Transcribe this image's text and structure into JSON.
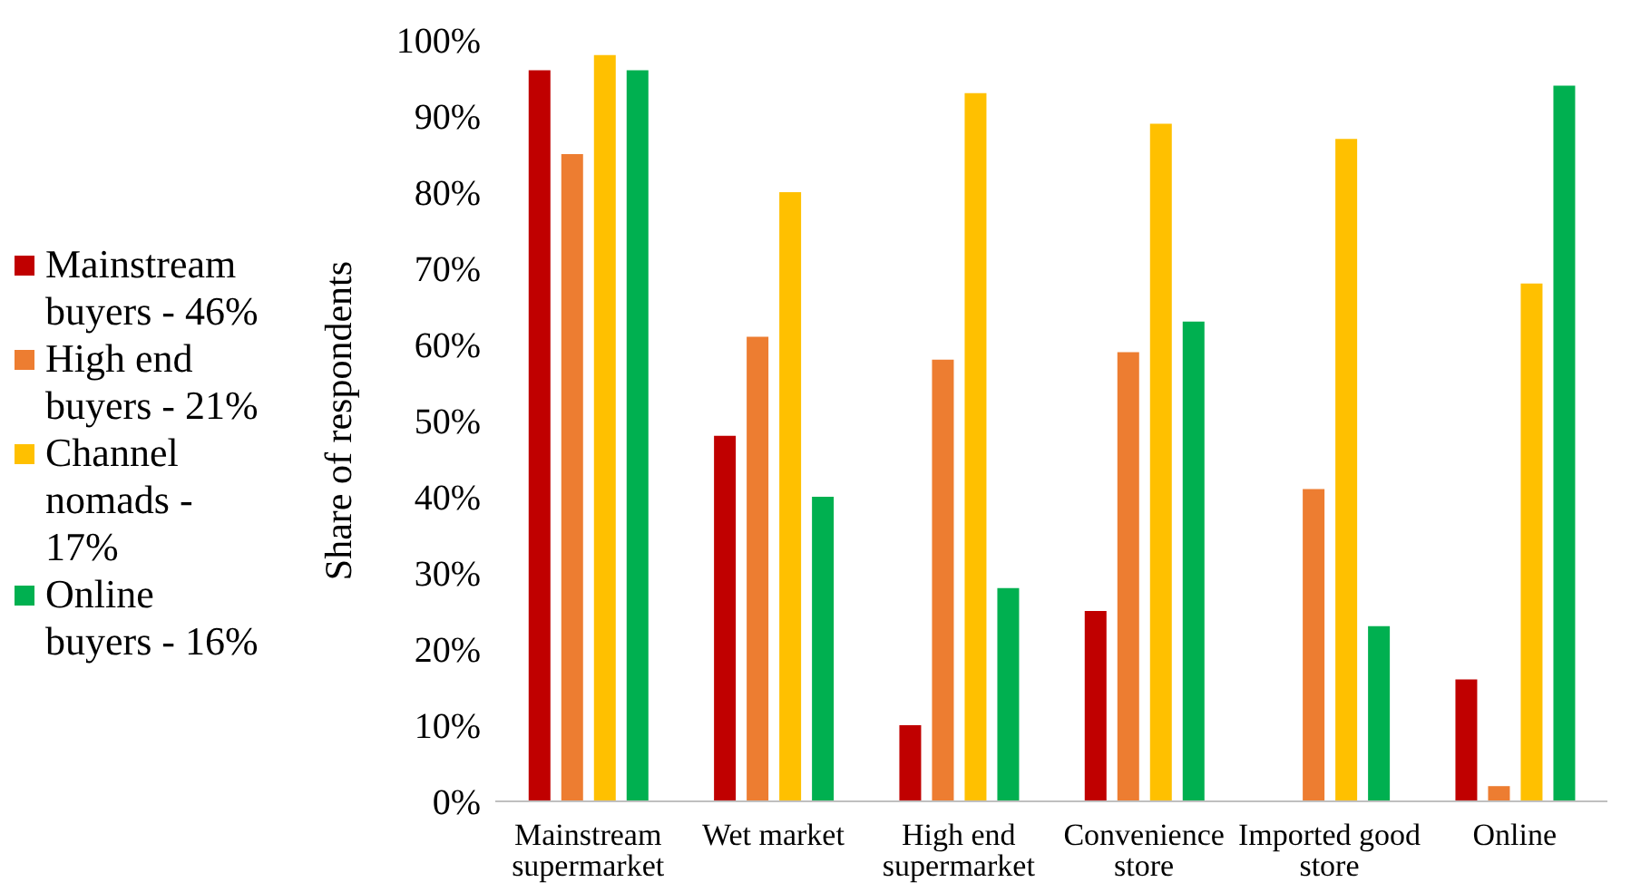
{
  "chart_data": {
    "type": "bar",
    "ylabel": "Share of respondents",
    "categories": [
      "Mainstream supermarket",
      "Wet market",
      "High end supermarket",
      "Convenience store",
      "Imported good store",
      "Online"
    ],
    "series": [
      {
        "name": "Mainstream buyers - 46%",
        "color": "#c00000",
        "values": [
          96,
          48,
          10,
          25,
          0,
          16
        ]
      },
      {
        "name": "High end buyers - 21%",
        "color": "#ed7d31",
        "values": [
          85,
          61,
          58,
          59,
          41,
          2
        ]
      },
      {
        "name": "Channel nomads - 17%",
        "color": "#ffc000",
        "values": [
          98,
          80,
          93,
          89,
          87,
          68
        ]
      },
      {
        "name": "Online buyers - 16%",
        "color": "#00b050",
        "values": [
          96,
          40,
          28,
          63,
          23,
          94
        ]
      }
    ],
    "ylim": [
      0,
      100
    ],
    "yticks": [
      {
        "value": 0,
        "label": "0%"
      },
      {
        "value": 10,
        "label": "10%"
      },
      {
        "value": 20,
        "label": "20%"
      },
      {
        "value": 30,
        "label": "30%"
      },
      {
        "value": 40,
        "label": "40%"
      },
      {
        "value": 50,
        "label": "50%"
      },
      {
        "value": 60,
        "label": "60%"
      },
      {
        "value": 70,
        "label": "70%"
      },
      {
        "value": 80,
        "label": "80%"
      },
      {
        "value": 90,
        "label": "90%"
      },
      {
        "value": 100,
        "label": "100%"
      }
    ],
    "grid": false,
    "legend": "left"
  }
}
